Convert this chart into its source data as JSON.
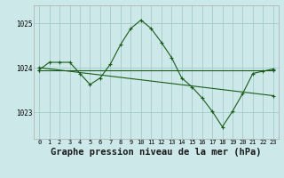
{
  "background_color": "#cce8e8",
  "grid_color": "#aacece",
  "line_color": "#1a5c1a",
  "title": "Graphe pression niveau de la mer (hPa)",
  "title_fontsize": 7.5,
  "ylim": [
    1022.4,
    1025.4
  ],
  "yticks": [
    1023,
    1024,
    1025
  ],
  "xlim": [
    -0.5,
    23.5
  ],
  "xticks": [
    0,
    1,
    2,
    3,
    4,
    5,
    6,
    7,
    8,
    9,
    10,
    11,
    12,
    13,
    14,
    15,
    16,
    17,
    18,
    19,
    20,
    21,
    22,
    23
  ],
  "series1_x": [
    0,
    1,
    2,
    3,
    4,
    5,
    6,
    7,
    8,
    9,
    10,
    11,
    12,
    13,
    14,
    15,
    16,
    17,
    18,
    19,
    20,
    21,
    22,
    23
  ],
  "series1_y": [
    1023.95,
    1024.12,
    1024.12,
    1024.12,
    1023.87,
    1023.62,
    1023.77,
    1024.08,
    1024.52,
    1024.88,
    1025.07,
    1024.88,
    1024.57,
    1024.23,
    1023.77,
    1023.57,
    1023.32,
    1023.02,
    1022.67,
    1023.02,
    1023.42,
    1023.87,
    1023.92,
    1023.97
  ],
  "series2_x": [
    0,
    23
  ],
  "series2_y": [
    1023.95,
    1023.95
  ],
  "series3_x": [
    0,
    23
  ],
  "series3_y": [
    1024.0,
    1023.37
  ]
}
